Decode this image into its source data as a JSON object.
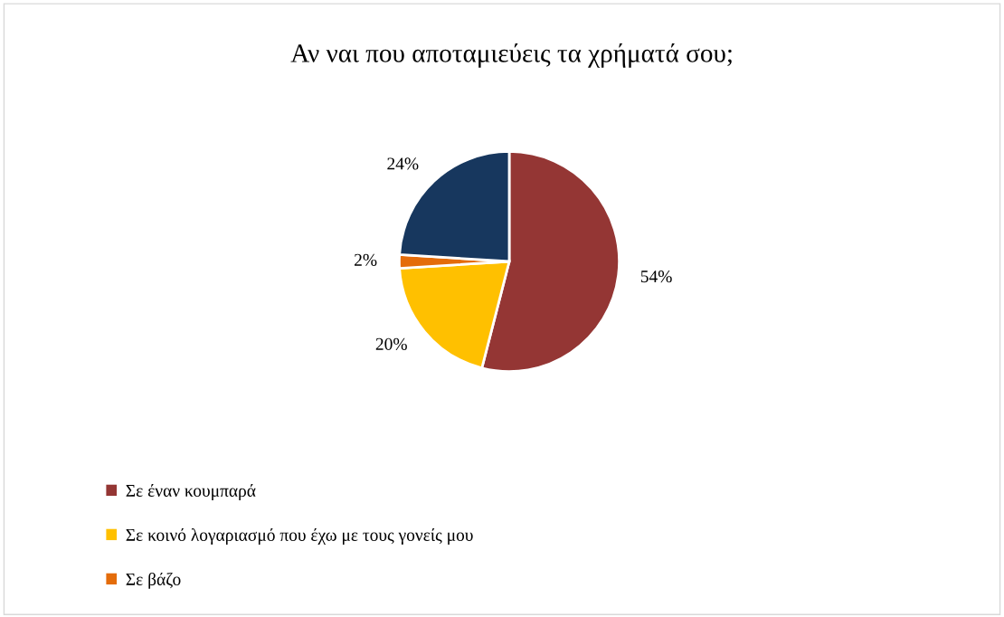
{
  "chart_data": {
    "type": "pie",
    "title": "Αν ναι που αποταμιεύεις τα χρήματά σου;",
    "categories": [
      "Σε έναν κουμπαρά",
      "Σε κοινό λογαριασμό που έχω με τους γονείς μου",
      "Σε βάζο",
      null
    ],
    "values": [
      54,
      20,
      2,
      24
    ],
    "colors": [
      "#943634",
      "#ffc000",
      "#e46c0a",
      "#17375e"
    ],
    "value_labels": [
      "54%",
      "20%",
      "2%",
      "24%"
    ],
    "legend": "bottom left"
  }
}
